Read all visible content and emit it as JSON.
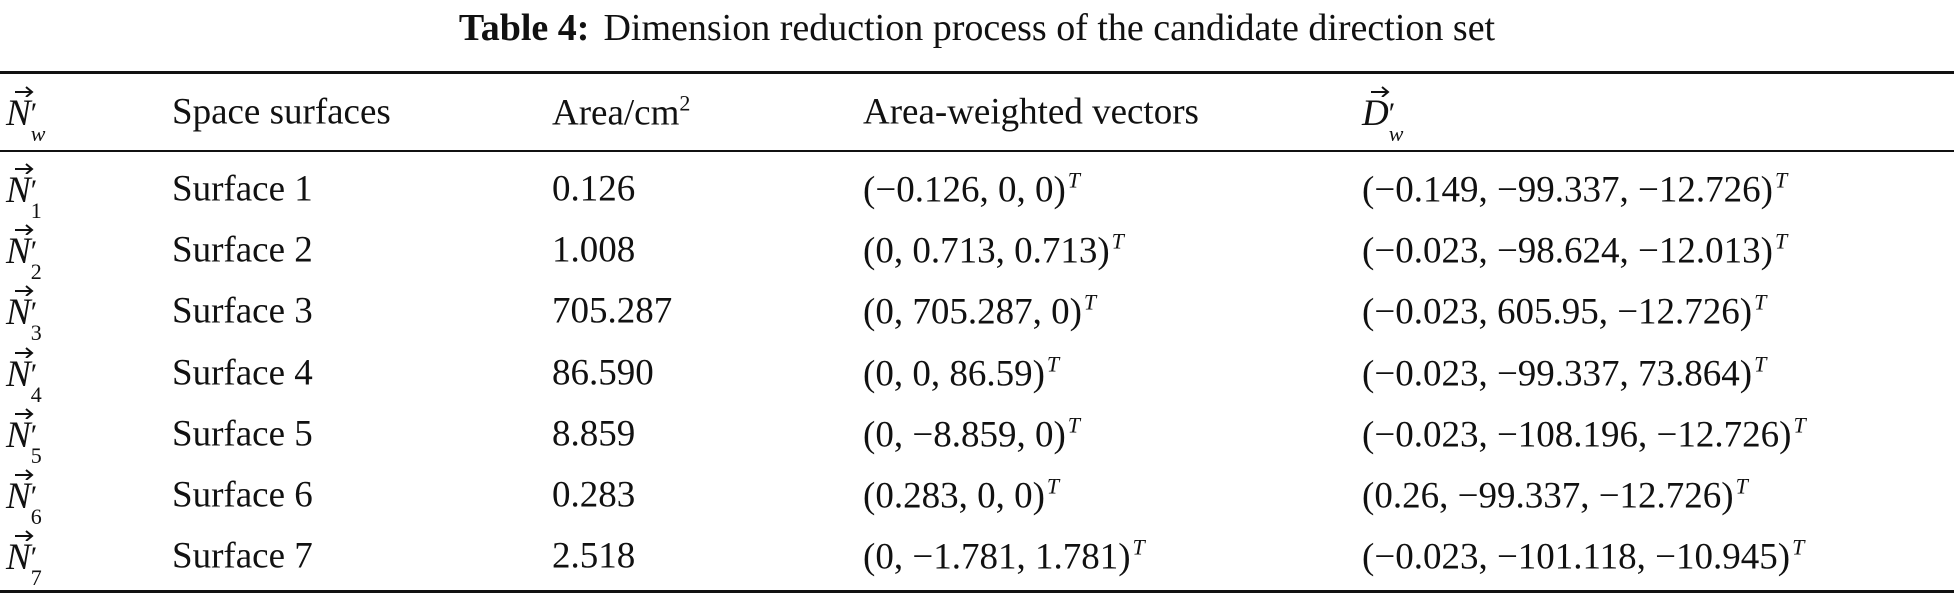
{
  "caption": {
    "label": "Table 4:",
    "text": "Dimension reduction process of the candidate direction set"
  },
  "notation": {
    "prime": "′",
    "transpose": "T"
  },
  "table": {
    "header": {
      "normal": {
        "symbol": "N",
        "sub": "w"
      },
      "surface": "Space surfaces",
      "area": {
        "text": "Area/cm",
        "sup": "2"
      },
      "vector": "Area-weighted vectors",
      "direction": {
        "symbol": "D",
        "sub": "w"
      }
    },
    "rows": [
      {
        "symbol": "N",
        "sub": "1",
        "surface": "Surface 1",
        "area": "0.126",
        "vector": "(−0.126, 0, 0)",
        "direction": "(−0.149, −99.337, −12.726)"
      },
      {
        "symbol": "N",
        "sub": "2",
        "surface": "Surface 2",
        "area": "1.008",
        "vector": "(0, 0.713, 0.713)",
        "direction": "(−0.023, −98.624, −12.013)"
      },
      {
        "symbol": "N",
        "sub": "3",
        "surface": "Surface 3",
        "area": "705.287",
        "vector": "(0, 705.287, 0)",
        "direction": "(−0.023, 605.95, −12.726)"
      },
      {
        "symbol": "N",
        "sub": "4",
        "surface": "Surface 4",
        "area": "86.590",
        "vector": "(0, 0, 86.59)",
        "direction": "(−0.023, −99.337, 73.864)"
      },
      {
        "symbol": "N",
        "sub": "5",
        "surface": "Surface 5",
        "area": "8.859",
        "vector": "(0, −8.859, 0)",
        "direction": "(−0.023, −108.196, −12.726)"
      },
      {
        "symbol": "N",
        "sub": "6",
        "surface": "Surface 6",
        "area": "0.283",
        "vector": "(0.283, 0, 0)",
        "direction": "(0.26, −99.337, −12.726)"
      },
      {
        "symbol": "N",
        "sub": "7",
        "surface": "Surface 7",
        "area": "2.518",
        "vector": "(0, −1.781, 1.781)",
        "direction": "(−0.023, −101.118, −10.945)"
      }
    ]
  }
}
